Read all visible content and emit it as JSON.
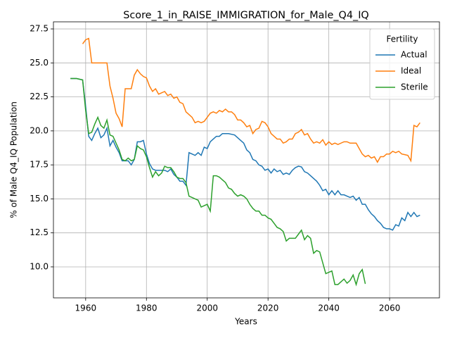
{
  "chart_data": {
    "type": "line",
    "title": "Score_1_in_RAISE_IMMIGRATION_for_Male_Q4_IQ",
    "x_label": "Years",
    "y_label": "% of Male Q4_IQ Population",
    "legend_title": "Fertility",
    "legend_position": "upper right",
    "grid": true,
    "x": [
      1955,
      1956,
      1957,
      1958,
      1959,
      1960,
      1961,
      1962,
      1963,
      1964,
      1965,
      1966,
      1967,
      1968,
      1969,
      1970,
      1971,
      1972,
      1973,
      1974,
      1975,
      1976,
      1977,
      1978,
      1979,
      1980,
      1981,
      1982,
      1983,
      1984,
      1985,
      1986,
      1987,
      1988,
      1989,
      1990,
      1991,
      1992,
      1993,
      1994,
      1995,
      1996,
      1997,
      1998,
      1999,
      2000,
      2001,
      2002,
      2003,
      2004,
      2005,
      2006,
      2007,
      2008,
      2009,
      2010,
      2011,
      2012,
      2013,
      2014,
      2015,
      2016,
      2017,
      2018,
      2019,
      2020,
      2021,
      2022,
      2023,
      2024,
      2025,
      2026,
      2027,
      2028,
      2029,
      2030,
      2031,
      2032,
      2033,
      2034,
      2035,
      2036,
      2037,
      2038,
      2039,
      2040,
      2041,
      2042,
      2043,
      2044,
      2045,
      2046,
      2047,
      2048,
      2049,
      2050,
      2051,
      2052,
      2053,
      2054,
      2055,
      2056,
      2057,
      2058,
      2059,
      2060,
      2061,
      2062,
      2063,
      2064,
      2065,
      2066,
      2067,
      2068,
      2069,
      2070
    ],
    "series": [
      {
        "name": "Actual",
        "color": "#1f77b4",
        "values": [
          23.85,
          23.85,
          23.85,
          23.8,
          23.75,
          21.8,
          19.6,
          19.3,
          19.8,
          20.2,
          19.5,
          19.7,
          20.2,
          18.9,
          19.3,
          18.8,
          18.4,
          17.8,
          17.8,
          17.8,
          17.5,
          17.9,
          19.2,
          19.2,
          19.3,
          18.3,
          17.6,
          17.2,
          17.1,
          17.1,
          17.1,
          17.1,
          17.0,
          17.2,
          16.8,
          16.6,
          16.3,
          16.3,
          16.0,
          18.4,
          18.3,
          18.2,
          18.4,
          18.2,
          18.8,
          18.7,
          19.2,
          19.4,
          19.6,
          19.6,
          19.8,
          19.8,
          19.8,
          19.75,
          19.7,
          19.5,
          19.3,
          19.1,
          18.6,
          18.4,
          17.9,
          17.8,
          17.5,
          17.4,
          17.1,
          17.2,
          16.9,
          17.2,
          17.0,
          17.1,
          16.8,
          16.9,
          16.8,
          17.1,
          17.3,
          17.4,
          17.35,
          17.0,
          16.9,
          16.7,
          16.5,
          16.3,
          16.0,
          15.6,
          15.7,
          15.3,
          15.6,
          15.3,
          15.6,
          15.3,
          15.3,
          15.2,
          15.1,
          15.2,
          14.9,
          15.1,
          14.6,
          14.6,
          14.2,
          13.9,
          13.7,
          13.4,
          13.2,
          12.9,
          12.8,
          12.8,
          12.7,
          13.1,
          13.0,
          13.6,
          13.4,
          14.0,
          13.7,
          14.0,
          13.7,
          13.8
        ]
      },
      {
        "name": "Ideal",
        "color": "#ff7f0e",
        "values": [
          null,
          null,
          null,
          null,
          26.4,
          26.7,
          26.8,
          25.0,
          25.0,
          25.0,
          25.0,
          25.0,
          25.0,
          23.3,
          22.4,
          21.3,
          20.9,
          20.3,
          23.1,
          23.1,
          23.1,
          24.1,
          24.5,
          24.2,
          24.0,
          23.9,
          23.3,
          22.9,
          23.1,
          22.7,
          22.8,
          22.9,
          22.6,
          22.7,
          22.4,
          22.5,
          22.1,
          22.0,
          21.4,
          21.2,
          21.0,
          20.6,
          20.7,
          20.6,
          20.7,
          21.0,
          21.3,
          21.4,
          21.3,
          21.5,
          21.4,
          21.6,
          21.4,
          21.4,
          21.2,
          20.8,
          20.8,
          20.6,
          20.3,
          20.4,
          19.8,
          20.1,
          20.2,
          20.7,
          20.6,
          20.3,
          19.8,
          19.6,
          19.4,
          19.4,
          19.1,
          19.2,
          19.4,
          19.4,
          19.8,
          19.9,
          20.1,
          19.7,
          19.8,
          19.4,
          19.1,
          19.2,
          19.1,
          19.35,
          18.95,
          19.2,
          19.0,
          19.1,
          19.0,
          19.1,
          19.2,
          19.2,
          19.1,
          19.1,
          19.1,
          18.7,
          18.3,
          18.1,
          18.2,
          18.0,
          18.1,
          17.7,
          18.1,
          18.1,
          18.3,
          18.3,
          18.5,
          18.4,
          18.5,
          18.3,
          18.25,
          18.2,
          17.8,
          20.4,
          20.3,
          20.6
        ]
      },
      {
        "name": "Sterile",
        "color": "#2ca02c",
        "values": [
          23.85,
          23.85,
          23.85,
          23.8,
          23.75,
          21.5,
          19.8,
          19.9,
          20.5,
          21.0,
          20.4,
          20.2,
          20.8,
          19.7,
          19.6,
          19.1,
          18.6,
          17.9,
          17.8,
          18.0,
          17.8,
          17.9,
          18.9,
          18.7,
          18.6,
          18.1,
          17.3,
          16.6,
          17.0,
          16.7,
          16.9,
          17.4,
          17.3,
          17.3,
          17.0,
          16.6,
          16.5,
          16.5,
          16.2,
          15.2,
          15.1,
          15.0,
          14.9,
          14.4,
          14.5,
          14.6,
          14.1,
          16.7,
          16.7,
          16.6,
          16.4,
          16.2,
          15.8,
          15.7,
          15.4,
          15.2,
          15.3,
          15.2,
          15.0,
          14.6,
          14.3,
          14.1,
          14.1,
          13.8,
          13.8,
          13.6,
          13.5,
          13.2,
          12.9,
          12.8,
          12.6,
          11.9,
          12.1,
          12.1,
          12.1,
          12.4,
          12.7,
          12.0,
          12.3,
          12.1,
          11.0,
          11.2,
          11.1,
          10.3,
          9.5,
          9.6,
          9.7,
          8.7,
          8.7,
          8.9,
          9.1,
          8.8,
          9.0,
          9.4,
          8.7,
          9.5,
          9.8,
          8.75,
          null,
          null,
          null,
          null,
          null,
          null,
          null,
          null,
          null,
          null,
          null,
          null,
          null,
          null,
          null,
          null,
          null,
          null
        ]
      }
    ],
    "xlim": [
      1949.4,
      2076.4
    ],
    "xticks": [
      1960,
      1980,
      2000,
      2020,
      2040,
      2060
    ],
    "ylim": [
      7.72,
      28.02
    ],
    "yticks": [
      {
        "value": 10,
        "label": "10.0"
      },
      12.5,
      {
        "value": 15,
        "label": "15.0"
      },
      17.5,
      {
        "value": 20,
        "label": "20.0"
      },
      22.5,
      {
        "value": 25,
        "label": "25.0"
      },
      27.5
    ]
  }
}
